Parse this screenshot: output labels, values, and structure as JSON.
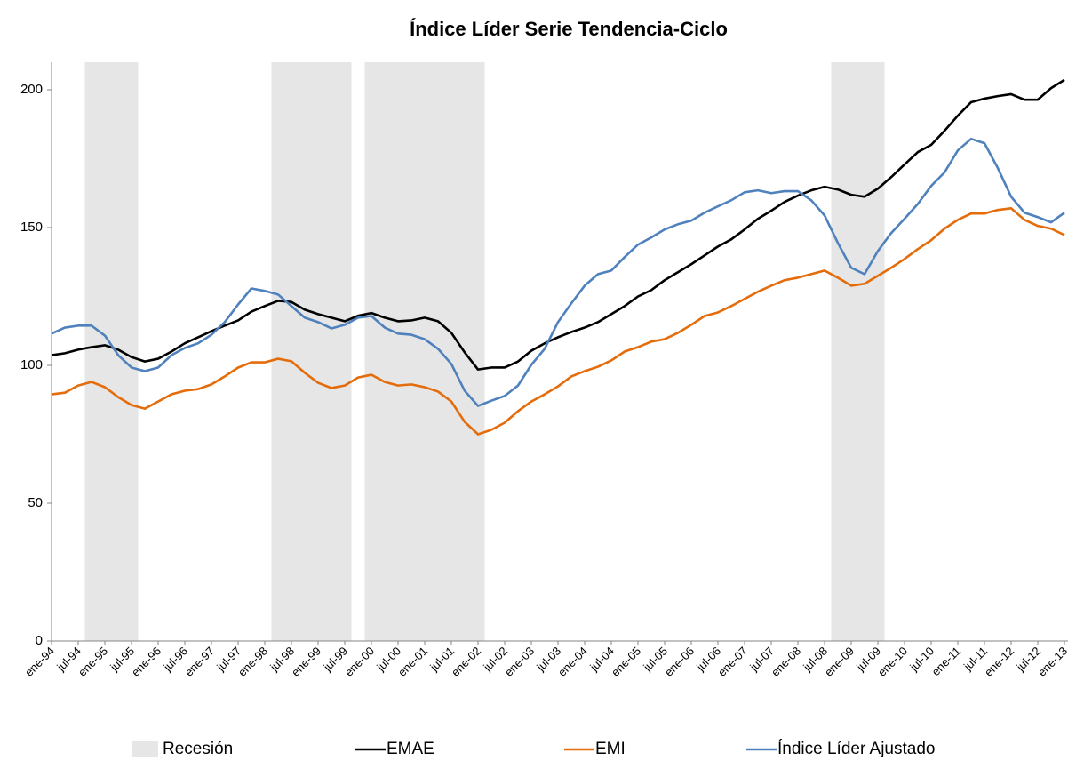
{
  "chart_data": {
    "type": "line",
    "title": "Índice Líder Serie Tendencia-Ciclo",
    "categories": [
      "ene-94",
      null,
      "jul-94",
      null,
      "ene-95",
      null,
      "jul-95",
      null,
      "ene-96",
      null,
      "jul-96",
      null,
      "ene-97",
      null,
      "jul-97",
      null,
      "ene-98",
      null,
      "jul-98",
      null,
      "ene-99",
      null,
      "jul-99",
      null,
      "ene-00",
      null,
      "jul-00",
      null,
      "ene-01",
      null,
      "jul-01",
      null,
      "ene-02",
      null,
      "jul-02",
      null,
      "ene-03",
      null,
      "jul-03",
      null,
      "ene-04",
      null,
      "jul-04",
      null,
      "ene-05",
      null,
      "jul-05",
      null,
      "ene-06",
      null,
      "jul-06",
      null,
      "ene-07",
      null,
      "jul-07",
      null,
      "ene-08",
      null,
      "jul-08",
      null,
      "ene-09",
      null,
      "jul-09",
      null,
      "ene-10",
      null,
      "jul-10",
      null,
      "ene-11",
      null,
      "jul-11",
      null,
      "ene-12",
      null,
      "jul-12",
      null,
      "ene-13"
    ],
    "series": [
      {
        "name": "Recesión",
        "type": "bar",
        "color": "#e6e6e6",
        "values": [
          null,
          null,
          null,
          210,
          210,
          210,
          210,
          null,
          null,
          null,
          null,
          null,
          null,
          null,
          null,
          null,
          null,
          210,
          210,
          210,
          210,
          210,
          210,
          null,
          210,
          210,
          210,
          210,
          210,
          210,
          210,
          210,
          210,
          null,
          null,
          null,
          null,
          null,
          null,
          null,
          null,
          null,
          null,
          null,
          null,
          null,
          null,
          null,
          null,
          null,
          null,
          null,
          null,
          null,
          null,
          null,
          null,
          null,
          null,
          210,
          210,
          210,
          210,
          null,
          null,
          null,
          null,
          null,
          null,
          null,
          null,
          null,
          null,
          null,
          null,
          null,
          null
        ]
      },
      {
        "name": "EMAE",
        "type": "line",
        "color": "#000000",
        "values": [
          103.7,
          104.4,
          105.7,
          106.6,
          107.3,
          105.7,
          103,
          101.4,
          102.4,
          105,
          108,
          110.2,
          112.4,
          114.4,
          116.3,
          119.5,
          121.5,
          123.4,
          123,
          120.2,
          118.6,
          117.3,
          116,
          118,
          119,
          117.3,
          116,
          116.3,
          117.3,
          116,
          111.8,
          104.7,
          98.5,
          99.2,
          99.2,
          101.4,
          105.3,
          108,
          110.2,
          112.1,
          113.7,
          115.7,
          118.6,
          121.5,
          125,
          127.3,
          130.9,
          133.8,
          136.7,
          139.9,
          143.1,
          145.7,
          149.3,
          153.2,
          156.1,
          159.3,
          161.6,
          163.5,
          164.8,
          163.8,
          161.9,
          161.2,
          164.1,
          168.3,
          172.9,
          177.4,
          180,
          185.1,
          190.6,
          195.5,
          196.8,
          197.7,
          198.4,
          196.4,
          196.4,
          200.6,
          203.6
        ]
      },
      {
        "name": "EMI",
        "type": "line",
        "color": "#e46c0a",
        "values": [
          89.5,
          90.1,
          92.7,
          94,
          92.1,
          88.5,
          85.6,
          84.3,
          86.9,
          89.5,
          90.8,
          91.4,
          93.1,
          96,
          99.2,
          101.1,
          101.1,
          102.4,
          101.5,
          97.3,
          93.7,
          91.8,
          92.7,
          95.6,
          96.6,
          94,
          92.7,
          93.1,
          92.1,
          90.5,
          86.9,
          79.5,
          75,
          76.6,
          79.2,
          83.4,
          86.9,
          89.5,
          92.4,
          96,
          97.9,
          99.5,
          101.8,
          105,
          106.6,
          108.6,
          109.5,
          111.8,
          114.7,
          117.9,
          119.2,
          121.5,
          124.1,
          126.7,
          128.9,
          130.9,
          131.8,
          133.1,
          134.4,
          131.8,
          128.9,
          129.6,
          132.5,
          135.4,
          138.6,
          142.2,
          145.4,
          149.6,
          152.8,
          155.1,
          155.1,
          156.4,
          157,
          152.8,
          150.6,
          149.6,
          147.3
        ]
      },
      {
        "name": "Índice Líder Ajustado",
        "type": "line",
        "color": "#4f81bd",
        "values": [
          111.5,
          113.7,
          114.4,
          114.4,
          110.8,
          103.7,
          99.2,
          97.9,
          99.2,
          103.7,
          106.3,
          108,
          111.1,
          115.7,
          122.1,
          127.9,
          127,
          125.7,
          121.5,
          117.3,
          115.7,
          113.4,
          114.7,
          117.3,
          117.9,
          113.7,
          111.5,
          111.1,
          109.5,
          106,
          100.5,
          90.8,
          85.3,
          87.2,
          88.9,
          92.7,
          100.2,
          106,
          115.7,
          122.5,
          128.9,
          133.1,
          134.4,
          139.3,
          143.8,
          146.4,
          149.3,
          151.2,
          152.5,
          155.4,
          157.7,
          159.9,
          162.8,
          163.5,
          162.5,
          163.2,
          163.2,
          159.9,
          154.4,
          144.4,
          135.4,
          133.1,
          141.5,
          148,
          153.2,
          158.6,
          165.1,
          170,
          178,
          182.2,
          180.6,
          171.6,
          161.2,
          155.4,
          153.8,
          151.9,
          155.4
        ]
      }
    ],
    "ylim": [
      0,
      210
    ],
    "yticks": [
      0,
      50,
      100,
      150,
      200
    ],
    "grid": false,
    "legend": "bottom"
  }
}
